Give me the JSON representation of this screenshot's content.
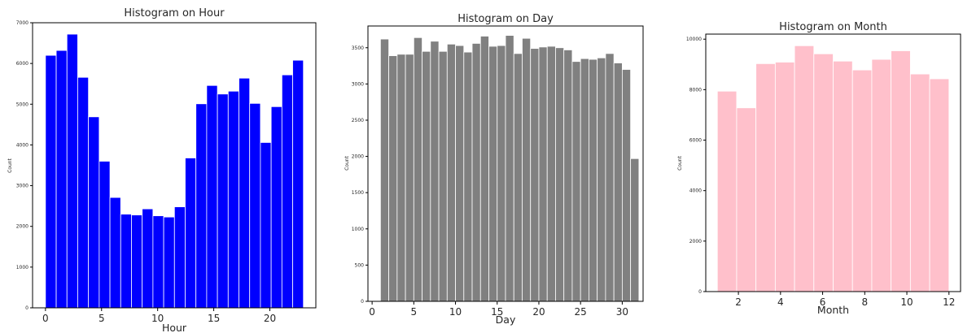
{
  "chart_data": [
    {
      "id": "hour",
      "type": "bar",
      "title": "Histogram on Hour",
      "xlabel": "Hour",
      "ylabel": "Count",
      "color": "#0000ff",
      "bin_start": 0,
      "bin_width": 0.958,
      "xlim": [
        -1.15,
        24.1
      ],
      "ylim": [
        0,
        7000
      ],
      "xticks": [
        0,
        5,
        10,
        15,
        20
      ],
      "yticks": [
        0,
        1000,
        2000,
        3000,
        4000,
        5000,
        6000,
        7000
      ],
      "values": [
        6200,
        6320,
        6720,
        5660,
        4690,
        3600,
        2710,
        2300,
        2280,
        2430,
        2260,
        2230,
        2480,
        3680,
        5010,
        5460,
        5250,
        5320,
        5640,
        5020,
        4060,
        4940,
        5720,
        6080
      ]
    },
    {
      "id": "day",
      "type": "bar",
      "title": "Histogram on Day",
      "xlabel": "Day",
      "ylabel": "Count",
      "color": "#808080",
      "bin_start": 1,
      "bin_width": 1,
      "xlim": [
        -0.5,
        32.5
      ],
      "ylim": [
        0,
        3800
      ],
      "xticks": [
        0,
        5,
        10,
        15,
        20,
        25,
        30
      ],
      "yticks": [
        0,
        500,
        1000,
        1500,
        2000,
        2500,
        3000,
        3500
      ],
      "values": [
        3620,
        3390,
        3410,
        3410,
        3640,
        3450,
        3590,
        3450,
        3550,
        3530,
        3440,
        3560,
        3660,
        3520,
        3530,
        3670,
        3420,
        3630,
        3490,
        3510,
        3520,
        3500,
        3470,
        3310,
        3350,
        3340,
        3360,
        3420,
        3290,
        3200,
        1970
      ]
    },
    {
      "id": "month",
      "type": "bar",
      "title": "Histogram on Month",
      "xlabel": "Month",
      "ylabel": "Count",
      "color": "#ffc0cb",
      "bin_start": 1,
      "bin_width": 0.9167,
      "xlim": [
        0.45,
        12.55
      ],
      "ylim": [
        0,
        10200
      ],
      "xticks": [
        2,
        4,
        6,
        8,
        10,
        12
      ],
      "yticks": [
        0,
        2000,
        4000,
        6000,
        8000,
        10000
      ],
      "values": [
        7940,
        7280,
        9030,
        9090,
        9740,
        9420,
        9130,
        8780,
        9200,
        9540,
        8620,
        8430
      ]
    }
  ]
}
